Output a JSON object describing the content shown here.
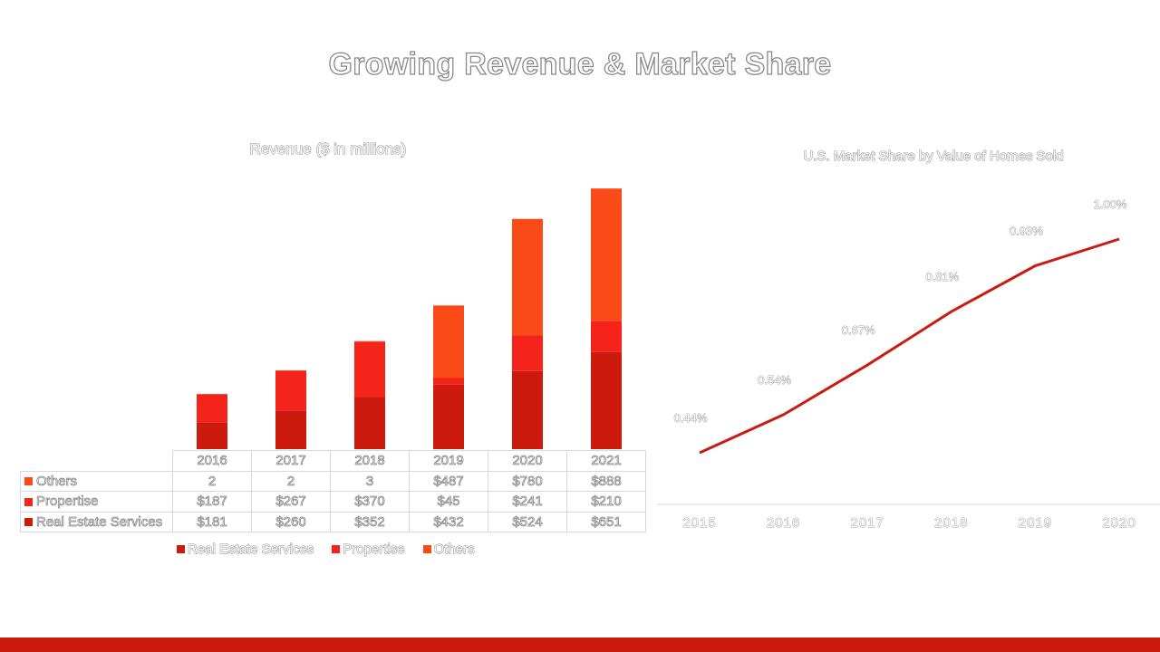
{
  "page": {
    "title": "Growing Revenue & Market Share",
    "colors": {
      "accent": "#cc1a0e",
      "line": "#c91c12"
    }
  },
  "revenue_chart": {
    "title": "Revenue ($ in millions)",
    "table_values": {
      "Others": [
        "2",
        "2",
        "3",
        "$487",
        "$780",
        "$888"
      ],
      "Propertise": [
        "$187",
        "$267",
        "$370",
        "$45",
        "$241",
        "$210"
      ],
      "Real Estate Services": [
        "$181",
        "$260",
        "$352",
        "$432",
        "$524",
        "$651"
      ]
    }
  },
  "market_share_chart": {
    "title": "U.S. Market Share  by Value of Homes Sold"
  },
  "chart_data": [
    {
      "type": "bar",
      "stacked": true,
      "title": "Revenue ($ in millions)",
      "categories": [
        "2016",
        "2017",
        "2018",
        "2019",
        "2020",
        "2021"
      ],
      "series": [
        {
          "name": "Real Estate Services",
          "color": "#cc1a0e",
          "values": [
            181,
            260,
            352,
            432,
            524,
            651
          ]
        },
        {
          "name": "Propertise",
          "color": "#f5241a",
          "values": [
            187,
            267,
            370,
            45,
            241,
            210
          ]
        },
        {
          "name": "Others",
          "color": "#f94a18",
          "values": [
            2,
            2,
            3,
            487,
            780,
            888
          ]
        }
      ],
      "legend": "bottom",
      "data_table": true,
      "ylim": [
        0,
        1750
      ]
    },
    {
      "type": "line",
      "title": "U.S. Market Share  by Value of Homes Sold",
      "x": [
        "2015",
        "2016",
        "2017",
        "2018",
        "2019",
        "2020"
      ],
      "values": [
        0.44,
        0.54,
        0.67,
        0.81,
        0.93,
        1.0
      ],
      "labels": [
        "0.44%",
        "0.54%",
        "0.67%",
        "0.81%",
        "0.93%",
        "1.00%"
      ],
      "ylim": [
        0.35,
        1.1
      ],
      "color": "#c91c12"
    }
  ]
}
